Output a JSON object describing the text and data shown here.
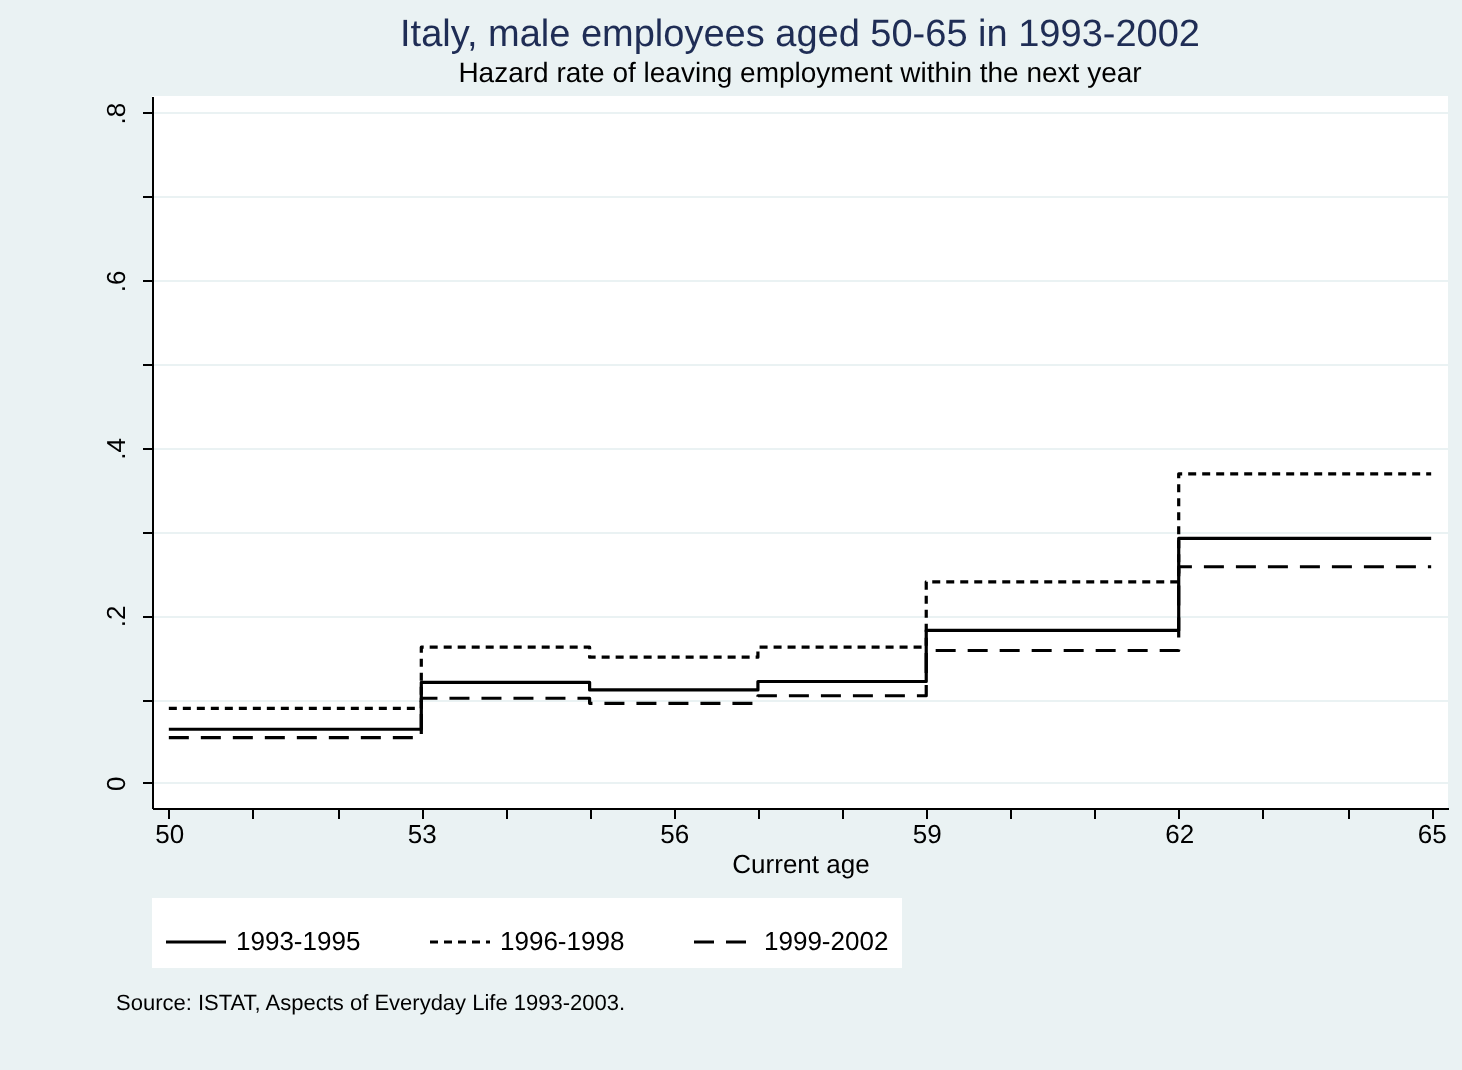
{
  "chart_data": {
    "type": "step",
    "title": "Italy, male employees aged 50-65 in 1993-2002",
    "subtitle": "Hazard rate of leaving employment within the next year",
    "xlabel": "Current age",
    "annotations": [
      "Source: ISTAT, Aspects of Everyday Life 1993-2003."
    ],
    "x": [
      50,
      53,
      55,
      57,
      59,
      62,
      65
    ],
    "series": [
      {
        "name": "1993-1995",
        "color": "#000000",
        "line_style": "solid",
        "values": [
          0.064,
          0.12,
          0.111,
          0.121,
          0.182,
          0.292,
          0.292
        ]
      },
      {
        "name": "1996-1998",
        "color": "#000000",
        "line_style": "dotted",
        "values": [
          0.089,
          0.162,
          0.15,
          0.162,
          0.24,
          0.369,
          0.369
        ]
      },
      {
        "name": "1999-2002",
        "color": "#000000",
        "line_style": "dashed",
        "values": [
          0.054,
          0.101,
          0.095,
          0.104,
          0.158,
          0.258,
          0.258
        ]
      }
    ],
    "xlim": [
      49.8,
      65.2
    ],
    "xticks": [
      50,
      {
        "value": 51,
        "label": null
      },
      {
        "value": 52,
        "label": null
      },
      53,
      {
        "value": 54,
        "label": null
      },
      {
        "value": 55,
        "label": null
      },
      56,
      {
        "value": 57,
        "label": null
      },
      {
        "value": 58,
        "label": null
      },
      59,
      {
        "value": 60,
        "label": null
      },
      {
        "value": 61,
        "label": null
      },
      62,
      {
        "value": 63,
        "label": null
      },
      {
        "value": 64,
        "label": null
      },
      65
    ],
    "ylim": [
      -0.03,
      0.82
    ],
    "yticks": [
      0,
      {
        "value": 0.1,
        "label": null
      },
      {
        "value": 0.2,
        "label": ".2"
      },
      {
        "value": 0.3,
        "label": null
      },
      {
        "value": 0.4,
        "label": ".4"
      },
      {
        "value": 0.5,
        "label": null
      },
      {
        "value": 0.6,
        "label": ".6"
      },
      {
        "value": 0.7,
        "label": null
      },
      {
        "value": 0.8,
        "label": ".8"
      }
    ],
    "grid": "y",
    "legend": "bottom"
  }
}
